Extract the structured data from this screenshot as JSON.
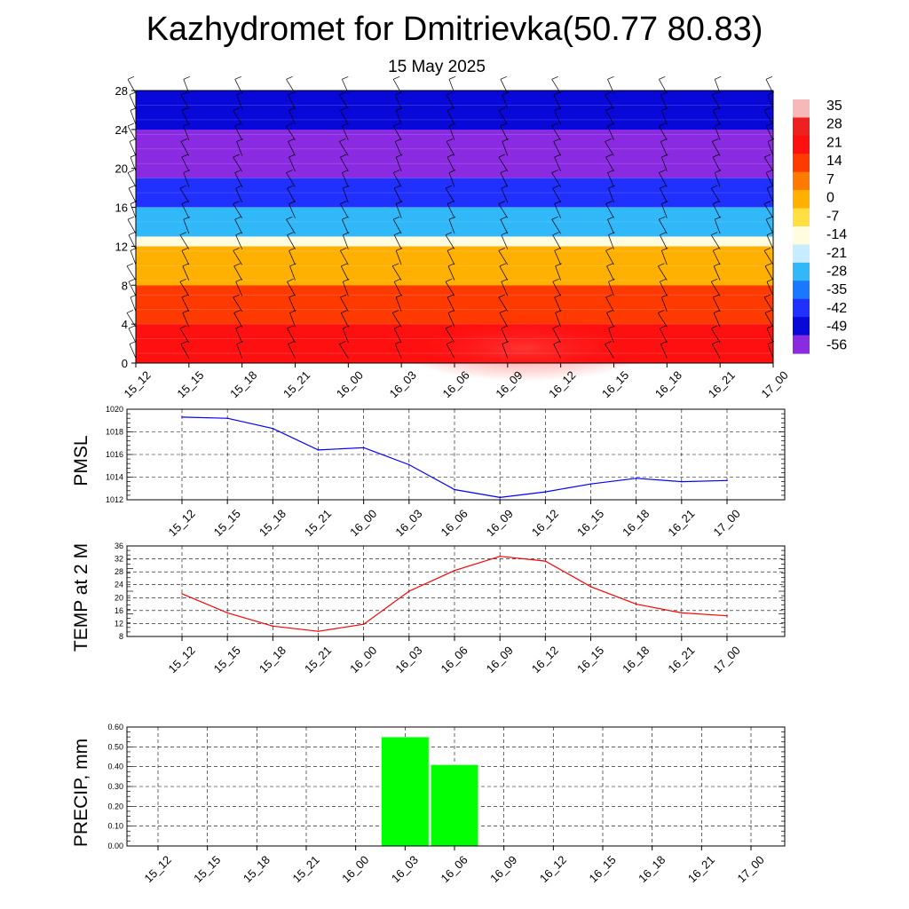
{
  "header": {
    "title": "Kazhydromet for Dmitrievka(50.77 80.83)",
    "subtitle": "15 May 2025"
  },
  "colors": {
    "pmsl_line": "#0000ff",
    "temp_line": "#ff0000",
    "precip_bar": "#00ff00",
    "grid": "#000000"
  },
  "chart_data": [
    {
      "type": "heatmap",
      "name": "upper-air-temperature-wind",
      "x_labels": [
        "15_12",
        "15_15",
        "15_18",
        "15_21",
        "16_00",
        "16_03",
        "16_06",
        "16_09",
        "16_12",
        "16_15",
        "16_18",
        "16_21",
        "17_00"
      ],
      "ylim": [
        0,
        28
      ],
      "y_ticks": [
        0,
        4,
        8,
        12,
        16,
        20,
        24,
        28
      ],
      "colorbar_labels": [
        "35",
        "28",
        "21",
        "14",
        "7",
        "0",
        "-7",
        "-14",
        "-21",
        "-28",
        "-35",
        "-42",
        "-49",
        "-56"
      ],
      "colorbar_colors": [
        "#f6b8b8",
        "#ee2020",
        "#ff1010",
        "#ff3a00",
        "#ff7a00",
        "#ffb000",
        "#ffe040",
        "#fffce0",
        "#c8ecff",
        "#30b8f8",
        "#1a78ff",
        "#2030ff",
        "#0808d8",
        "#8a2be2"
      ],
      "bands": [
        {
          "from": 0,
          "to": 4,
          "value": 21
        },
        {
          "from": 4,
          "to": 8,
          "value": 14
        },
        {
          "from": 8,
          "to": 12,
          "value": 0
        },
        {
          "from": 12,
          "to": 13,
          "value": -14
        },
        {
          "from": 13,
          "to": 16,
          "value": -28
        },
        {
          "from": 16,
          "to": 19,
          "value": -42
        },
        {
          "from": 19,
          "to": 24,
          "value": -56
        },
        {
          "from": 24,
          "to": 28,
          "value": -49
        }
      ],
      "wind_barbs": true
    },
    {
      "type": "line",
      "name": "pmsl",
      "ylabel": "PMSL",
      "x_labels": [
        "15_12",
        "15_15",
        "15_18",
        "15_21",
        "16_00",
        "16_03",
        "16_06",
        "16_09",
        "16_12",
        "16_15",
        "16_18",
        "16_21",
        "17_00"
      ],
      "y": [
        1019.3,
        1019.2,
        1018.3,
        1016.4,
        1016.6,
        1015.1,
        1012.9,
        1012.2,
        1012.7,
        1013.4,
        1013.9,
        1013.6,
        1013.7
      ],
      "ylim": [
        1012,
        1020
      ],
      "y_ticks": [
        1012,
        1014,
        1016,
        1018,
        1020
      ],
      "grid": true
    },
    {
      "type": "line",
      "name": "temp-2m",
      "ylabel": "TEMP at 2 M",
      "x_labels": [
        "15_12",
        "15_15",
        "15_18",
        "15_21",
        "16_00",
        "16_03",
        "16_06",
        "16_09",
        "16_12",
        "16_15",
        "16_18",
        "16_21",
        "17_00"
      ],
      "y": [
        21.2,
        15.3,
        11.2,
        9.6,
        11.8,
        22.0,
        28.4,
        32.8,
        31.3,
        23.4,
        18.0,
        15.3,
        14.4
      ],
      "ylim": [
        8,
        36
      ],
      "y_ticks": [
        8,
        12,
        16,
        20,
        24,
        28,
        32,
        36
      ],
      "grid": true
    },
    {
      "type": "bar",
      "name": "precip",
      "ylabel": "PRECIP, mm",
      "categories": [
        "15_12",
        "15_15",
        "15_18",
        "15_21",
        "16_00",
        "16_03",
        "16_06",
        "16_09",
        "16_12",
        "16_15",
        "16_18",
        "16_21",
        "17_00"
      ],
      "values": [
        0,
        0,
        0,
        0,
        0,
        0.55,
        0.41,
        0,
        0,
        0,
        0,
        0,
        0
      ],
      "ylim": [
        0,
        0.6
      ],
      "y_ticks": [
        "0.00",
        "0.10",
        "0.20",
        "0.30",
        "0.40",
        "0.50",
        "0.60"
      ],
      "grid": true
    }
  ]
}
